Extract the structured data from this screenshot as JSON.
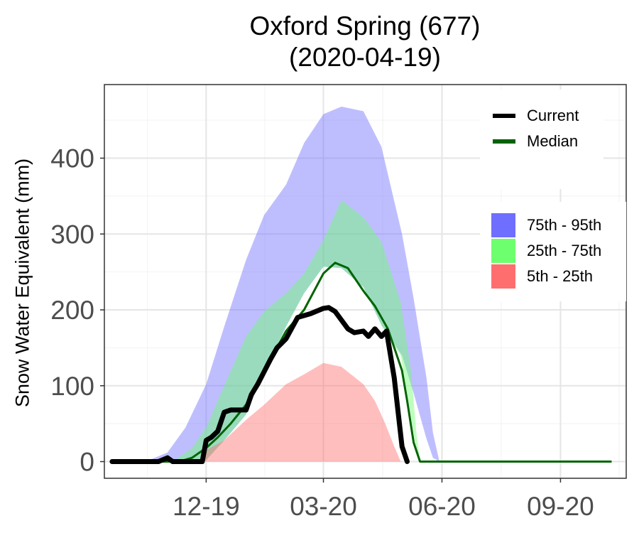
{
  "chart_data": {
    "type": "area",
    "title": "Oxford Spring (677)",
    "subtitle": "(2020-04-19)",
    "xlabel": "",
    "ylabel": "Snow Water Equivalent (mm)",
    "x_tick_labels": [
      "12-19",
      "03-20",
      "06-20",
      "09-20"
    ],
    "x_ticks": [
      "2019-12-01",
      "2020-03-01",
      "2020-06-01",
      "2020-09-01"
    ],
    "xlim": [
      "2019-09-13",
      "2020-10-22"
    ],
    "ylim": [
      -22,
      497
    ],
    "yticks": [
      0,
      100,
      200,
      300,
      400
    ],
    "grid": true,
    "legend": [
      {
        "name": "Current",
        "kind": "line",
        "color": "#000000"
      },
      {
        "name": "Median",
        "kind": "line",
        "color": "#006400"
      },
      {
        "name": "75th - 95th",
        "kind": "fill",
        "color": "#6e6eff"
      },
      {
        "name": "25th - 75th",
        "kind": "fill",
        "color": "#6eff6e"
      },
      {
        "name": "5th - 25th",
        "kind": "fill",
        "color": "#ff6e6e"
      }
    ],
    "bands": [
      {
        "name": "75th - 95th",
        "color": "#6e6eff",
        "opacity": 0.45,
        "x": [
          "2019-10-15",
          "2019-11-01",
          "2019-11-15",
          "2019-12-01",
          "2019-12-15",
          "2020-01-01",
          "2020-01-15",
          "2020-02-01",
          "2020-02-15",
          "2020-03-01",
          "2020-03-15",
          "2020-04-01",
          "2020-04-15",
          "2020-05-01",
          "2020-05-10",
          "2020-05-20",
          "2020-05-25",
          "2020-05-30"
        ],
        "lower": [
          0,
          0,
          0,
          2,
          28,
          62,
          118,
          178,
          222,
          257,
          255,
          230,
          180,
          140,
          90,
          30,
          5,
          0
        ],
        "upper": [
          0,
          12,
          45,
          102,
          178,
          266,
          325,
          365,
          420,
          458,
          468,
          462,
          415,
          300,
          215,
          110,
          38,
          0
        ]
      },
      {
        "name": "25th - 75th",
        "color": "#6eff6e",
        "opacity": 0.45,
        "x": [
          "2019-11-05",
          "2019-11-20",
          "2019-12-01",
          "2019-12-15",
          "2020-01-01",
          "2020-01-15",
          "2020-02-01",
          "2020-02-15",
          "2020-03-01",
          "2020-03-15",
          "2020-04-01",
          "2020-04-15",
          "2020-04-30",
          "2020-05-08",
          "2020-05-12",
          "2020-05-15"
        ],
        "lower": [
          0,
          0,
          2,
          28,
          62,
          118,
          178,
          222,
          257,
          255,
          230,
          180,
          140,
          60,
          15,
          0
        ],
        "upper": [
          0,
          18,
          45,
          100,
          165,
          198,
          222,
          248,
          292,
          345,
          322,
          290,
          210,
          120,
          40,
          0
        ]
      },
      {
        "name": "5th - 25th",
        "color": "#ff6e6e",
        "opacity": 0.45,
        "x": [
          "2019-11-25",
          "2019-12-01",
          "2019-12-15",
          "2020-01-01",
          "2020-01-15",
          "2020-02-01",
          "2020-02-15",
          "2020-03-01",
          "2020-03-15",
          "2020-04-01",
          "2020-04-10",
          "2020-04-18",
          "2020-04-25",
          "2020-04-30"
        ],
        "lower": [
          0,
          0,
          0,
          0,
          0,
          0,
          0,
          0,
          0,
          0,
          0,
          0,
          0,
          0
        ],
        "upper": [
          0,
          15,
          28,
          55,
          75,
          102,
          115,
          130,
          125,
          102,
          80,
          50,
          20,
          0
        ]
      }
    ],
    "series": [
      {
        "name": "Median",
        "color": "#006400",
        "x": [
          "2019-09-19",
          "2019-11-10",
          "2019-11-20",
          "2019-12-01",
          "2019-12-10",
          "2019-12-20",
          "2020-01-01",
          "2020-01-10",
          "2020-01-20",
          "2020-02-01",
          "2020-02-15",
          "2020-03-01",
          "2020-03-10",
          "2020-03-20",
          "2020-04-01",
          "2020-04-10",
          "2020-04-20",
          "2020-05-01",
          "2020-05-05",
          "2020-05-10",
          "2020-05-15",
          "2020-05-20",
          "2020-10-10"
        ],
        "y": [
          0,
          0,
          5,
          18,
          32,
          50,
          75,
          105,
          135,
          172,
          200,
          248,
          262,
          255,
          225,
          205,
          175,
          120,
          80,
          25,
          0,
          0,
          0
        ]
      },
      {
        "name": "Current",
        "color": "#000000",
        "x": [
          "2019-09-19",
          "2019-10-01",
          "2019-10-15",
          "2019-10-25",
          "2019-11-01",
          "2019-11-05",
          "2019-11-20",
          "2019-11-28",
          "2019-12-01",
          "2019-12-05",
          "2019-12-10",
          "2019-12-15",
          "2019-12-20",
          "2020-01-01",
          "2020-01-05",
          "2020-01-10",
          "2020-01-20",
          "2020-01-25",
          "2020-02-01",
          "2020-02-10",
          "2020-02-20",
          "2020-03-01",
          "2020-03-05",
          "2020-03-10",
          "2020-03-20",
          "2020-03-25",
          "2020-04-01",
          "2020-04-05",
          "2020-04-10",
          "2020-04-15",
          "2020-04-19",
          "2020-04-25",
          "2020-05-01",
          "2020-05-05"
        ],
        "y": [
          0,
          0,
          0,
          0,
          5,
          0,
          0,
          0,
          28,
          32,
          40,
          65,
          68,
          68,
          88,
          102,
          135,
          150,
          162,
          190,
          195,
          202,
          203,
          198,
          175,
          170,
          172,
          165,
          175,
          165,
          172,
          110,
          20,
          0
        ]
      }
    ]
  }
}
